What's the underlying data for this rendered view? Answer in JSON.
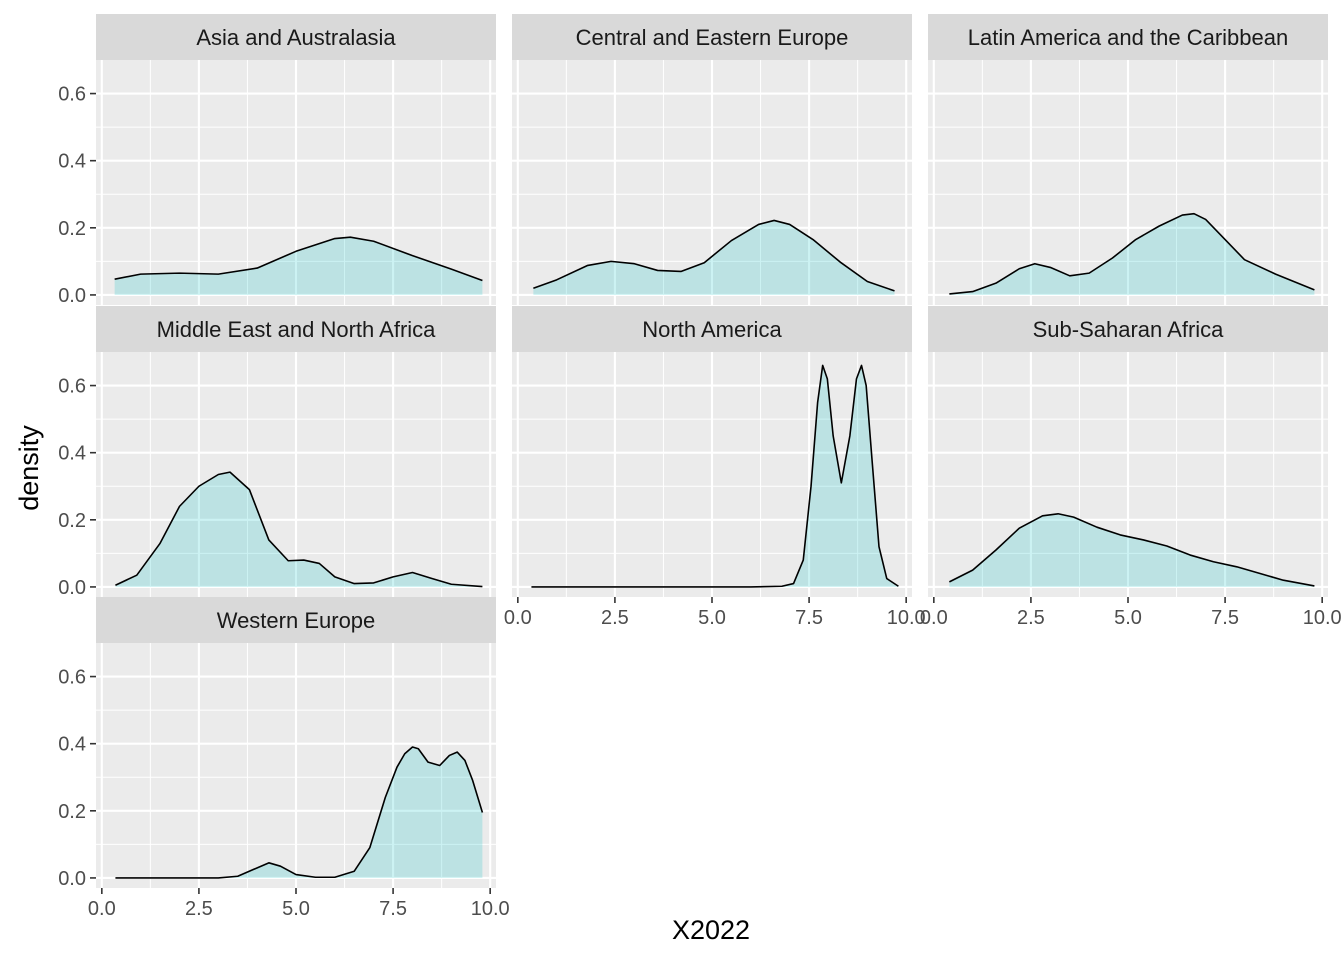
{
  "chart_data": {
    "type": "area",
    "facet_by": "region",
    "xlabel": "X2022",
    "ylabel": "density",
    "xlim": [
      -0.15,
      10.15
    ],
    "ylim": [
      -0.03,
      0.7
    ],
    "x_ticks": [
      0,
      2.5,
      5,
      7.5,
      10
    ],
    "x_tick_labels": [
      "0.0",
      "2.5",
      "5.0",
      "7.5",
      "10.0"
    ],
    "y_ticks": [
      0,
      0.2,
      0.4,
      0.6
    ],
    "y_tick_labels": [
      "0.0",
      "0.2",
      "0.4",
      "0.6"
    ],
    "fill_color": "#00bfc4",
    "fill_opacity": 0.2,
    "line_color": "#000000",
    "panel_background": "#ebebeb",
    "strip_background": "#d9d9d9",
    "grid": true,
    "legend": "none",
    "panels": [
      {
        "name": "Asia and Australasia",
        "x": [
          0.33,
          1.0,
          2.0,
          3.0,
          4.0,
          5.0,
          6.0,
          6.4,
          7.0,
          8.0,
          9.0,
          9.8
        ],
        "y": [
          0.047,
          0.062,
          0.065,
          0.062,
          0.08,
          0.13,
          0.168,
          0.172,
          0.16,
          0.117,
          0.077,
          0.043
        ]
      },
      {
        "name": "Central and Eastern Europe",
        "x": [
          0.4,
          1.0,
          1.8,
          2.4,
          3.0,
          3.6,
          4.2,
          4.8,
          5.5,
          6.2,
          6.6,
          7.0,
          7.6,
          8.3,
          9.0,
          9.7
        ],
        "y": [
          0.02,
          0.045,
          0.088,
          0.1,
          0.093,
          0.073,
          0.07,
          0.096,
          0.162,
          0.21,
          0.222,
          0.21,
          0.165,
          0.098,
          0.04,
          0.012
        ]
      },
      {
        "name": "Latin America and the Caribbean",
        "x": [
          0.4,
          1.0,
          1.6,
          2.2,
          2.6,
          3.0,
          3.5,
          4.0,
          4.6,
          5.2,
          5.8,
          6.4,
          6.7,
          7.0,
          7.5,
          8.0,
          8.8,
          9.8
        ],
        "y": [
          0.003,
          0.01,
          0.035,
          0.078,
          0.093,
          0.082,
          0.057,
          0.065,
          0.11,
          0.165,
          0.205,
          0.238,
          0.242,
          0.225,
          0.165,
          0.105,
          0.062,
          0.015
        ]
      },
      {
        "name": "Middle East and North Africa",
        "x": [
          0.35,
          0.9,
          1.5,
          2.0,
          2.5,
          3.0,
          3.3,
          3.8,
          4.3,
          4.8,
          5.2,
          5.6,
          6.0,
          6.5,
          7.0,
          7.5,
          8.0,
          8.5,
          9.0,
          9.8
        ],
        "y": [
          0.005,
          0.035,
          0.13,
          0.24,
          0.3,
          0.335,
          0.342,
          0.29,
          0.14,
          0.078,
          0.08,
          0.07,
          0.03,
          0.01,
          0.012,
          0.03,
          0.043,
          0.025,
          0.008,
          0.001
        ]
      },
      {
        "name": "North America",
        "x": [
          0.35,
          6.0,
          6.8,
          7.1,
          7.35,
          7.55,
          7.72,
          7.85,
          7.97,
          8.12,
          8.33,
          8.55,
          8.72,
          8.85,
          8.97,
          9.12,
          9.3,
          9.5,
          9.8
        ],
        "y": [
          0.0,
          0.0,
          0.002,
          0.01,
          0.08,
          0.3,
          0.55,
          0.66,
          0.62,
          0.45,
          0.31,
          0.45,
          0.62,
          0.66,
          0.6,
          0.38,
          0.12,
          0.025,
          0.002
        ]
      },
      {
        "name": "Sub-Saharan Africa",
        "x": [
          0.4,
          1.0,
          1.6,
          2.2,
          2.8,
          3.2,
          3.6,
          4.2,
          4.8,
          5.4,
          6.0,
          6.6,
          7.2,
          7.8,
          8.4,
          9.0,
          9.8
        ],
        "y": [
          0.015,
          0.05,
          0.11,
          0.175,
          0.212,
          0.218,
          0.208,
          0.178,
          0.155,
          0.14,
          0.122,
          0.095,
          0.075,
          0.06,
          0.04,
          0.02,
          0.003
        ]
      },
      {
        "name": "Western Europe",
        "x": [
          0.35,
          3.0,
          3.5,
          3.9,
          4.3,
          4.6,
          5.0,
          5.5,
          6.0,
          6.5,
          6.9,
          7.3,
          7.6,
          7.8,
          8.0,
          8.15,
          8.4,
          8.7,
          8.95,
          9.15,
          9.35,
          9.55,
          9.8
        ],
        "y": [
          0.0,
          0.0,
          0.005,
          0.025,
          0.045,
          0.035,
          0.01,
          0.002,
          0.002,
          0.02,
          0.09,
          0.24,
          0.33,
          0.37,
          0.39,
          0.385,
          0.345,
          0.335,
          0.365,
          0.375,
          0.35,
          0.29,
          0.195
        ]
      }
    ]
  }
}
